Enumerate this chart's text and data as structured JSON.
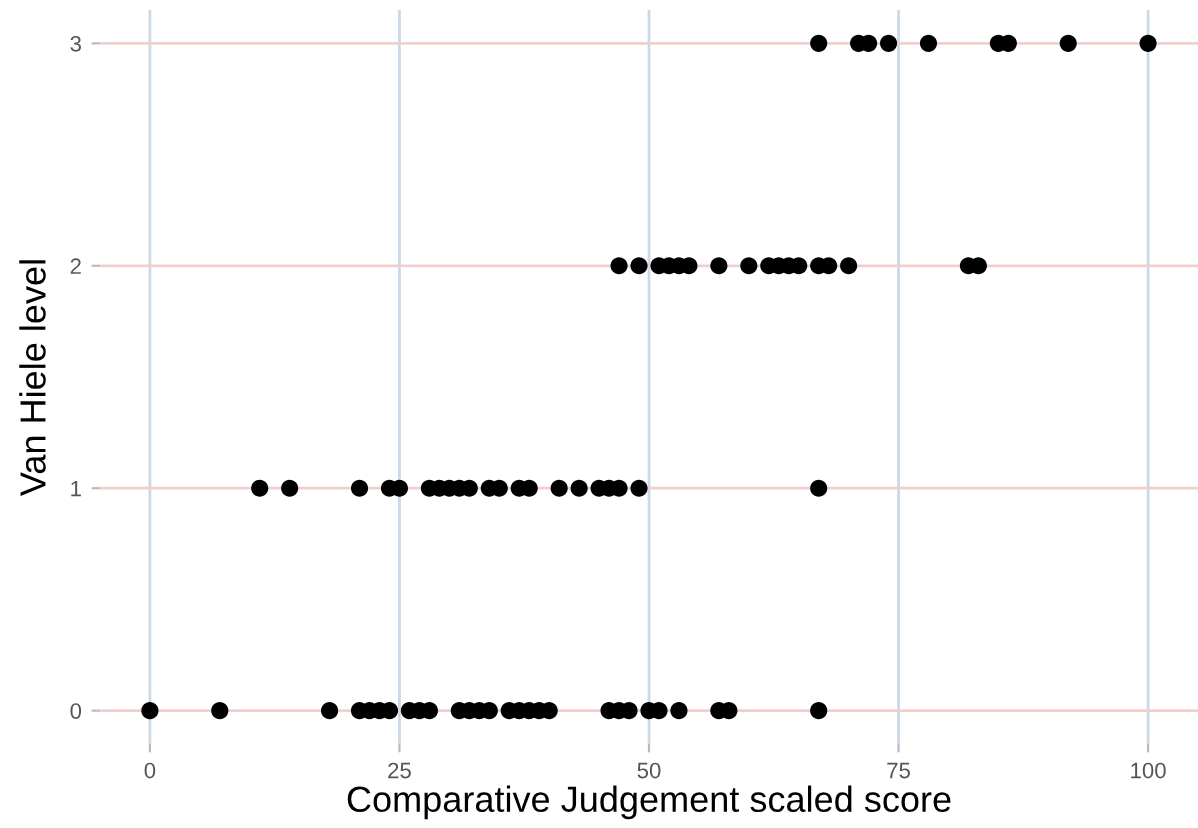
{
  "chart_data": {
    "type": "scatter",
    "xlabel": "Comparative Judgement scaled score",
    "ylabel": "Van Hiele level",
    "x": [
      0,
      7,
      18,
      21,
      22,
      23,
      24,
      26,
      27,
      28,
      31,
      32,
      33,
      34,
      36,
      37,
      38,
      39,
      40,
      46,
      47,
      48,
      50,
      51,
      53,
      57,
      58,
      67,
      11,
      14,
      21,
      24,
      25,
      28,
      29,
      30,
      31,
      32,
      34,
      35,
      37,
      38,
      41,
      43,
      45,
      46,
      47,
      49,
      67,
      47,
      49,
      51,
      52,
      53,
      54,
      57,
      60,
      62,
      63,
      64,
      65,
      67,
      68,
      70,
      82,
      83,
      67,
      71,
      72,
      74,
      78,
      85,
      86,
      92,
      100
    ],
    "values": [
      0,
      0,
      0,
      0,
      0,
      0,
      0,
      0,
      0,
      0,
      0,
      0,
      0,
      0,
      0,
      0,
      0,
      0,
      0,
      0,
      0,
      0,
      0,
      0,
      0,
      0,
      0,
      0,
      1,
      1,
      1,
      1,
      1,
      1,
      1,
      1,
      1,
      1,
      1,
      1,
      1,
      1,
      1,
      1,
      1,
      1,
      1,
      1,
      1,
      2,
      2,
      2,
      2,
      2,
      2,
      2,
      2,
      2,
      2,
      2,
      2,
      2,
      2,
      2,
      2,
      2,
      3,
      3,
      3,
      3,
      3,
      3,
      3,
      3,
      3
    ],
    "color": "#000000",
    "marker": "circle",
    "xlim": [
      -5,
      105
    ],
    "xticks": [
      0,
      25,
      50,
      75,
      100
    ],
    "ylim": [
      -0.15,
      3.15
    ],
    "yticks": [
      0,
      1,
      2,
      3
    ],
    "grid": true
  }
}
